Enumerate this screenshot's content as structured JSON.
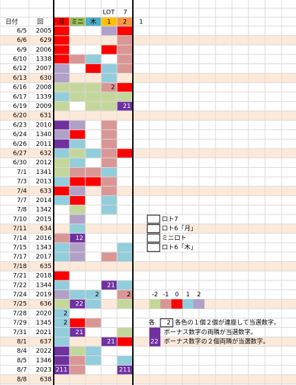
{
  "header": {
    "lot": "LOT",
    "seven": "7",
    "date": "日付",
    "round": "回",
    "cols": [
      {
        "text": "月",
        "fill": "#ff0000"
      },
      {
        "text": "ミニ",
        "fill": "#9bbb59"
      },
      {
        "text": "木",
        "fill": "#4bacc6"
      },
      {
        "text": "1",
        "fill": "#ffc000"
      },
      {
        "text": "2",
        "fill": "#f79646"
      }
    ],
    "extra": "1"
  },
  "rows": [
    {
      "date": "6/5",
      "round": "2005",
      "cells": [
        "#ff0000",
        null,
        null,
        "#b1a0c7",
        "#ff0000"
      ]
    },
    {
      "date": "6/6",
      "round": "629",
      "fill": "#fde9d9",
      "cells": [
        "#ff0000",
        null,
        null,
        null,
        "#da9694"
      ]
    },
    {
      "date": "6/9",
      "round": "2006",
      "cells": [
        "#ff0000",
        null,
        null,
        "#ff0000",
        "#da9694"
      ]
    },
    {
      "date": "6/10",
      "round": "1338",
      "cells": [
        "#ff0000",
        "#da9694",
        "#92cddc",
        null,
        "#da9694"
      ]
    },
    {
      "date": "6/12",
      "round": "2007",
      "cells": [
        "#b1a0c7",
        null,
        "#ff0000",
        "#92cddc",
        "#da9694"
      ]
    },
    {
      "date": "6/13",
      "round": "630",
      "fill": "#fde9d9",
      "cells": [
        "#b1a0c7",
        null,
        null,
        "#92cddc",
        null
      ]
    },
    {
      "date": "6/16",
      "round": "2008",
      "cells": [
        "#c4d79b",
        "#c4d79b",
        "#c4d79b",
        {
          "fill": "#da9694",
          "text": "2"
        },
        "#ff0000"
      ]
    },
    {
      "date": "6/17",
      "round": "1339",
      "cells": [
        "#92cddc",
        "#c4d79b",
        "#c4d79b",
        "#c4d79b",
        "#c4d79b"
      ]
    },
    {
      "date": "6/19",
      "round": "2009",
      "cells": [
        "#c4d79b",
        null,
        "#c4d79b",
        "#c4d79b",
        {
          "fill": "#7030a0",
          "text": "21"
        }
      ]
    },
    {
      "date": "6/20",
      "round": "631",
      "fill": "#fde9d9",
      "cells": [
        null,
        null,
        null,
        null,
        null
      ]
    },
    {
      "date": "6/23",
      "round": "2010",
      "cells": [
        "#7030a0",
        "#b1a0c7",
        null,
        "#da9694",
        null
      ]
    },
    {
      "date": "6/24",
      "round": "1340",
      "cells": [
        "#b1a0c7",
        "#ff0000",
        null,
        "#da9694",
        null
      ]
    },
    {
      "date": "6/26",
      "round": "2011",
      "cells": [
        "#7030a0",
        "#92cddc",
        null,
        "#da9694",
        null
      ]
    },
    {
      "date": "6/27",
      "round": "632",
      "fill": "#fde9d9",
      "cells": [
        "#92cddc",
        "#c4d79b",
        "#92cddc",
        "#da9694",
        "#ff0000"
      ]
    },
    {
      "date": "6/30",
      "round": "2012",
      "cells": [
        "#c4d79b",
        "#92cddc",
        null,
        "#da9694",
        null
      ]
    },
    {
      "date": "7/1",
      "round": "1341",
      "cells": [
        "#c4d79b",
        "#da9694",
        "#da9694",
        "#92cddc",
        null
      ]
    },
    {
      "date": "7/3",
      "round": "2013",
      "cells": [
        "#92cddc",
        "#ff0000",
        "#ff0000",
        "#da9694",
        null
      ]
    },
    {
      "date": "7/4",
      "round": "633",
      "fill": "#fde9d9",
      "cells": [
        "#ff0000",
        "#b1a0c7",
        null,
        "#da9694",
        null
      ]
    },
    {
      "date": "7/7",
      "round": "2014",
      "cells": [
        "#92cddc",
        "#ff0000",
        null,
        "#92cddc",
        null
      ]
    },
    {
      "date": "7/8",
      "round": "1342",
      "cells": [
        null,
        "#c4d79b",
        null,
        "#92cddc",
        null
      ]
    },
    {
      "date": "7/10",
      "round": "2015",
      "cells": [
        null,
        "#b1a0c7",
        null,
        null,
        null
      ]
    },
    {
      "date": "7/11",
      "round": "634",
      "fill": "#fde9d9",
      "cells": [
        null,
        "#92cddc",
        null,
        null,
        null
      ]
    },
    {
      "date": "7/14",
      "round": "2016",
      "cells": [
        "#da9694",
        {
          "fill": "#7030a0",
          "text": "12"
        },
        null,
        null,
        null
      ]
    },
    {
      "date": "7/15",
      "round": "1343",
      "cells": [
        "#92cddc",
        "#b1a0c7",
        null,
        null,
        "#92cddc"
      ]
    },
    {
      "date": "7/17",
      "round": "2017",
      "cells": [
        "#92cddc",
        "#b1a0c7",
        null,
        "#da9694",
        "#92cddc"
      ]
    },
    {
      "date": "7/18",
      "round": "635",
      "fill": "#fde9d9",
      "cells": [
        null,
        null,
        null,
        null,
        null
      ]
    },
    {
      "date": "7/21",
      "round": "2018",
      "cells": [
        "#ff0000",
        null,
        null,
        null,
        null
      ]
    },
    {
      "date": "7/22",
      "round": "1344",
      "cells": [
        "#92cddc",
        null,
        null,
        {
          "fill": "#7030a0",
          "text": "21"
        },
        "#92cddc"
      ]
    },
    {
      "date": "7/24",
      "round": "2019",
      "cells": [
        "#b1a0c7",
        "#92cddc",
        {
          "fill": "#92cddc",
          "text": "2"
        },
        null,
        {
          "fill": "#da9694",
          "text": "2"
        }
      ]
    },
    {
      "date": "7/25",
      "round": "636",
      "fill": "#fde9d9",
      "cells": [
        "#c4d79b",
        {
          "fill": "#7030a0",
          "text": "22"
        },
        "#92cddc",
        null,
        "#c4d79b"
      ]
    },
    {
      "date": "7/28",
      "round": "2020",
      "cells": [
        {
          "fill": "#92cddc",
          "text": "2"
        },
        null,
        null,
        null,
        null
      ]
    },
    {
      "date": "7/29",
      "round": "1345",
      "cells": [
        {
          "fill": "#92cddc",
          "text": "2"
        },
        "#ff0000",
        "#da9694",
        null,
        null
      ]
    },
    {
      "date": "7/31",
      "round": "2021",
      "cells": [
        "#92cddc",
        {
          "fill": "#7030a0",
          "text": "21"
        },
        null,
        null,
        "#c4d79b"
      ]
    },
    {
      "date": "8/1",
      "round": "637",
      "fill": "#fde9d9",
      "cells": [
        "#92cddc",
        null,
        null,
        {
          "fill": "#7030a0",
          "text": "21"
        },
        "#ff0000"
      ]
    },
    {
      "date": "8/4",
      "round": "2022",
      "cells": [
        "#7030a0",
        "#c4d79b",
        "#92cddc",
        null,
        null
      ]
    },
    {
      "date": "8/5",
      "round": "1346",
      "cells": [
        "#7030a0",
        "#da9694",
        "#92cddc",
        null,
        "#92cddc"
      ]
    },
    {
      "date": "8/7",
      "round": "2023",
      "cells": [
        {
          "fill": "#7030a0",
          "text": "211"
        },
        "#da9694",
        null,
        null,
        {
          "fill": "#7030a0",
          "text": "211"
        }
      ]
    },
    {
      "date": "8/8",
      "round": "638",
      "fill": "#fde9d9",
      "cells": [
        null,
        null,
        null,
        null,
        null
      ]
    }
  ],
  "legend": [
    "ロト7",
    "ロト6「月」",
    "ミニロト",
    "ロト6「木」"
  ],
  "scale": {
    "values": [
      -2,
      -1,
      0,
      1,
      2
    ],
    "colors": [
      "#c4d79b",
      "#da9694",
      "#ff0000",
      "#92cddc",
      "#b1a0c7"
    ]
  },
  "notes": [
    {
      "prefix": "各",
      "box": "2",
      "text": "各色の１個２個が連座して当選数字。"
    },
    {
      "fill": "#7030a0",
      "text": "ボーナス数字の両隣が当選数字。"
    },
    {
      "fill": "#7030a0",
      "box": "22",
      "text": "ボーナス数字の２個両隣が当選数字。"
    }
  ]
}
